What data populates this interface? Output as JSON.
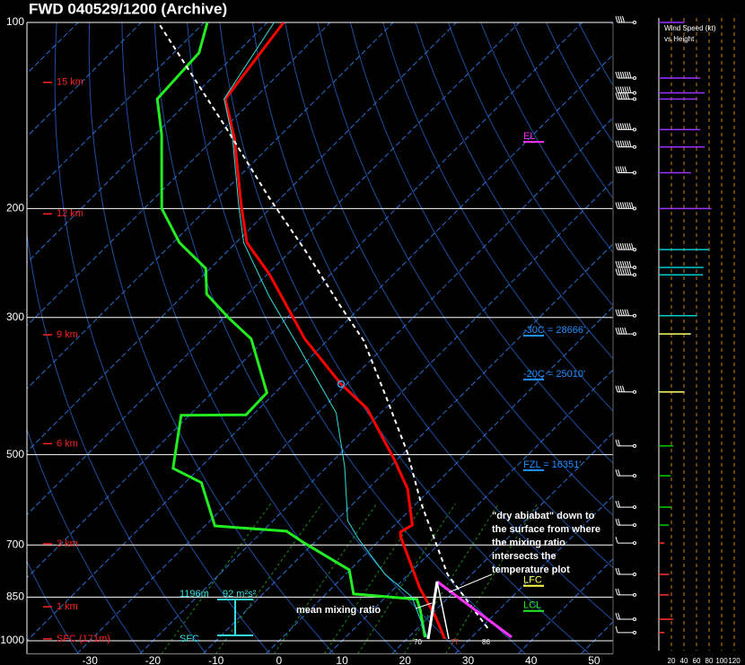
{
  "chart_data": {
    "type": "skewt",
    "title": "FWD  040529/1200  (Archive)",
    "log_y": true,
    "ylim": [
      1050,
      100
    ],
    "yticks": [
      100,
      200,
      300,
      500,
      700,
      850,
      1000
    ],
    "xlim": [
      -40,
      53
    ],
    "xticks": [
      -30,
      -20,
      -10,
      0,
      10,
      20,
      30,
      40,
      50
    ],
    "series": [
      {
        "color": "#ff0000",
        "width": 3,
        "dash": "",
        "pressure": [
          993,
          914,
          821,
          679,
          667,
          650,
          568,
          509,
          421,
          384,
          325,
          255,
          227,
          198,
          154,
          133,
          100
        ],
        "values": [
          26.0,
          21.0,
          13.9,
          2.8,
          2.0,
          2.8,
          -3.7,
          -10.5,
          -22.9,
          -31.0,
          -43.8,
          -59.8,
          -68.3,
          -75.0,
          -86.8,
          -94.5,
          -97.4
        ]
      },
      {
        "color": "#22ee22",
        "width": 3,
        "dash": "",
        "pressure": [
          987,
          893,
          857,
          840,
          768,
          695,
          665,
          652,
          555,
          526,
          432,
          431,
          397,
          325,
          301,
          275,
          250,
          227,
          200,
          152,
          133,
          112,
          100
        ],
        "values": [
          22.6,
          17.6,
          15.3,
          4.4,
          -0.1,
          -11.5,
          -16.2,
          -28.4,
          -37.4,
          -44.2,
          -51.3,
          -41.1,
          -41.3,
          -52.3,
          -59.1,
          -66.5,
          -70.7,
          -79.0,
          -87.2,
          -98.9,
          -105.3,
          -106.0,
          -109.5
        ]
      },
      {
        "color": "#33dddd",
        "width": 1,
        "dash": "",
        "pressure": [
          993,
          923,
          849,
          781,
          683,
          639,
          523,
          428,
          328,
          277,
          227,
          198,
          154,
          133,
          100
        ],
        "values": [
          23.3,
          19.0,
          14.1,
          6.3,
          -3.7,
          -8.2,
          -17.2,
          -27.1,
          -44.9,
          -56.3,
          -68.8,
          -75.4,
          -87.1,
          -94.7,
          -98.9
        ]
      },
      {
        "color": "#ffffff",
        "width": 2,
        "dash": "5,4",
        "pressure": [
          954,
          781,
          598,
          497,
          400,
          327,
          287,
          234,
          192,
          147,
          100
        ],
        "values": [
          31.1,
          16.2,
          0.6,
          -9.4,
          -22.2,
          -34.2,
          -43.5,
          -57.7,
          -71.9,
          -90.3,
          -117.3
        ]
      }
    ],
    "height_labels": [
      {
        "label": "15 km",
        "pressure": 125
      },
      {
        "label": "12 km",
        "pressure": 204
      },
      {
        "label": "9 km",
        "pressure": 320
      },
      {
        "label": "6 km",
        "pressure": 480
      },
      {
        "label": "3 km",
        "pressure": 697
      },
      {
        "label": "1 km",
        "pressure": 881
      },
      {
        "label": "SFC (171m)",
        "pressure": 993
      }
    ],
    "levels": [
      {
        "label": "EL",
        "pressure": 156,
        "color": "#ff33ff"
      },
      {
        "label": "-30C = 28666'",
        "pressure": 321,
        "color": "#1e90ff"
      },
      {
        "label": "-20C = 25010'",
        "pressure": 378,
        "color": "#1e90ff"
      },
      {
        "label": "FZL = 16351'",
        "pressure": 530,
        "color": "#1e90ff"
      },
      {
        "label": "LFC",
        "pressure": 815,
        "color": "#ffff44"
      },
      {
        "label": "LCL",
        "pressure": 895,
        "color": "#22ee22"
      }
    ],
    "helicity": {
      "height": "1196m",
      "value": "92 m²s²",
      "base": "SFC"
    },
    "annotations": {
      "mixing": "mean mixing ratio",
      "adiabat": [
        "\"dry abiabat\" down to",
        "the surface from where",
        "the mixing ratio",
        "intersects the",
        "temperature plot"
      ],
      "surface": [
        "70",
        "77",
        "86"
      ]
    },
    "wind": {
      "title": [
        "Wind Speed (kt)",
        "vs Height"
      ],
      "xlim": [
        0,
        130
      ],
      "xticks": [
        20,
        40,
        60,
        80,
        100,
        120
      ],
      "pressure": [
        100,
        123,
        130,
        133,
        149,
        159,
        175,
        200,
        233,
        249,
        256,
        298,
        319,
        396,
        484,
        541,
        608,
        650,
        695,
        781,
        843,
        923,
        970
      ],
      "speed": [
        41,
        66,
        73,
        61,
        66,
        73,
        51,
        84,
        80,
        71,
        70,
        61,
        51,
        41,
        23,
        19,
        20,
        16,
        9,
        16,
        16,
        23,
        9
      ],
      "colors": [
        "#9933ff",
        "#9933ff",
        "#9933ff",
        "#9933ff",
        "#9933ff",
        "#9933ff",
        "#9933ff",
        "#9933ff",
        "#00cccc",
        "#00cccc",
        "#00cccc",
        "#00cccc",
        "#ffff66",
        "#ffff66",
        "#00cc00",
        "#00cc00",
        "#00cc00",
        "#00cc00",
        "#ff3333",
        "#ff3333",
        "#ff3333",
        "#ff3333",
        "#ff3333"
      ]
    }
  }
}
